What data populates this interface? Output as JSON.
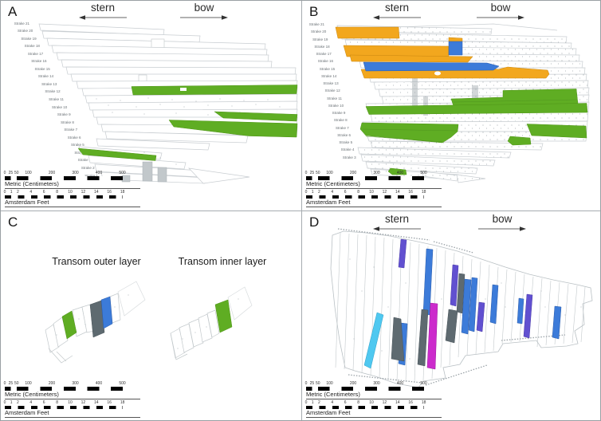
{
  "panel_a": {
    "letter": "A",
    "stern_label": "stern",
    "bow_label": "bow"
  },
  "panel_b": {
    "letter": "B",
    "stern_label": "stern",
    "bow_label": "bow"
  },
  "panel_c": {
    "letter": "C",
    "outer_layer_title": "Transom outer layer",
    "inner_layer_title": "Transom inner layer"
  },
  "panel_d": {
    "letter": "D",
    "stern_label": "stern",
    "bow_label": "bow"
  },
  "strakes_a": [
    "Strake 21",
    "Strake 20",
    "Strake 19",
    "Strake 18",
    "Strake 17",
    "Strake 16",
    "Strake 15",
    "Strake 14",
    "Strake 13",
    "Strake 12",
    "Strake 11",
    "Strake 10",
    "Strake 9",
    "Strake 8",
    "Strake 7",
    "Strake 6",
    "Strake 5",
    "Strake 4",
    "Strake 3",
    "Strake 2",
    "Strake 1"
  ],
  "strakes_b": [
    "Strake 21",
    "Strake 20",
    "Strake 19",
    "Strake 18",
    "Strake 17",
    "Strake 16",
    "Strake 15",
    "Strake 14",
    "Strake 13",
    "Strake 12",
    "Strake 11",
    "Strake 10",
    "Strake 9",
    "Strake 8",
    "Strake 7",
    "Strake 6",
    "Strake 5",
    "Strake 4",
    "Strake 3"
  ],
  "scalebar": {
    "metric_label": "Metric (Centimeters)",
    "metric_ticks": [
      0,
      25,
      50,
      100,
      200,
      300,
      400,
      500
    ],
    "feet_label": "Amsterdam Feet",
    "feet_ticks": [
      0,
      1,
      2,
      4,
      6,
      8,
      10,
      12,
      14,
      16,
      18
    ]
  },
  "colors": {
    "green": "#5fad23",
    "orange": "#f2a71e",
    "blue": "#3c7bd9",
    "violet": "#6150d0",
    "magenta": "#cc2bcc",
    "cyan": "#4fc8f0",
    "framegrey": "#5e6a70",
    "outline": "#c8cdd1"
  }
}
